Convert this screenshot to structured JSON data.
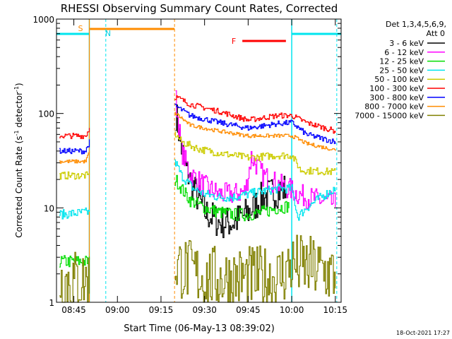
{
  "chart_data": {
    "type": "line",
    "title": "RHESSI Observing Summary Count Rates, Corrected",
    "xlabel": "Start Time (06-May-13 08:39:02)",
    "ylabel": "Corrected Count Rate (s",
    "ylabel_sup1": "-1",
    "ylabel_mid": " detector",
    "ylabel_sup2": "-1",
    "ylabel_end": ")",
    "y_scale": "log",
    "ylim": [
      1,
      1000
    ],
    "xlim": [
      "08:39:02",
      "10:17:00"
    ],
    "y_ticks": [
      {
        "value": 1,
        "label": "1"
      },
      {
        "value": 10,
        "label": "10"
      },
      {
        "value": 100,
        "label": "100"
      },
      {
        "value": 1000,
        "label": "1000"
      }
    ],
    "x_ticks": [
      {
        "value": "08:45",
        "label": "08:45"
      },
      {
        "value": "09:00",
        "label": "09:00"
      },
      {
        "value": "09:15",
        "label": "09:15"
      },
      {
        "value": "09:30",
        "label": "09:30"
      },
      {
        "value": "09:45",
        "label": "09:45"
      },
      {
        "value": "10:00",
        "label": "10:00"
      },
      {
        "value": "10:15",
        "label": "10:15"
      }
    ],
    "legend_header": [
      "Det 1,3,4,5,6,9,",
      "Att 0"
    ],
    "legend_position": "right",
    "timestamp": "18-Oct-2021 17:27",
    "intervals": {
      "night": [
        [
          "08:39:02",
          "08:50:20"
        ],
        [
          "10:00:00",
          "10:17:00"
        ]
      ],
      "saa": [
        "08:50:20",
        "09:19:40"
      ],
      "flare": [
        "09:43:00",
        "09:58:00"
      ]
    },
    "interval_labels": {
      "saa": "S",
      "night": "N",
      "flare": "F"
    },
    "vlines": {
      "cyan_dashed": [
        "08:56:00",
        "10:15:30"
      ],
      "orange_dashed": [
        "09:19:40"
      ]
    },
    "series": [
      {
        "name": "3 - 6 keV",
        "color": "#000000",
        "noise": 0.18,
        "x": [
          "09:20:00",
          "09:23:00",
          "09:27:00",
          "09:30:00",
          "09:35:00",
          "09:40:00",
          "09:45:00",
          "09:50:00",
          "09:55:00",
          "09:58:00"
        ],
        "y": [
          100,
          28,
          14,
          9,
          7,
          7,
          9,
          13,
          15,
          16
        ]
      },
      {
        "name": "6 - 12 keV",
        "color": "#ff00ff",
        "noise": 0.12,
        "x": [
          "09:20:00",
          "09:22:00",
          "09:25:00",
          "09:30:00",
          "09:35:00",
          "09:40:00",
          "09:44:00",
          "09:46:00",
          "09:50:00",
          "09:55:00",
          "09:59:00",
          "10:02:00",
          "10:05:00",
          "10:10:00",
          "10:15:00"
        ],
        "y": [
          140,
          40,
          23,
          17,
          14,
          14,
          15,
          35,
          22,
          18,
          16,
          14,
          13,
          12,
          11
        ]
      },
      {
        "name": "12 - 25 keV",
        "color": "#00dd00",
        "noise": 0.07,
        "x": [
          "08:40:00",
          "08:50:20",
          "09:20:00",
          "09:22:00",
          "09:25:00",
          "09:30:00",
          "09:35:00",
          "09:40:00",
          "09:45:00",
          "09:50:00",
          "09:55:00",
          "09:59:00"
        ],
        "y": [
          2.7,
          2.7,
          20,
          16,
          12,
          10,
          9,
          8.5,
          8.5,
          9,
          10,
          10.5
        ]
      },
      {
        "name": "25 - 50 keV",
        "color": "#00e5ee",
        "noise": 0.05,
        "x": [
          "08:40:00",
          "08:50:00",
          "08:50:20",
          "09:20:00",
          "09:22:00",
          "09:26:00",
          "09:30:00",
          "09:35:00",
          "09:40:00",
          "09:45:00",
          "09:50:00",
          "09:55:00",
          "10:00:00",
          "10:02:00",
          "10:05:00",
          "10:10:00",
          "10:15:00"
        ],
        "y": [
          8.5,
          9,
          9.5,
          30,
          22,
          16,
          14,
          13,
          13,
          14,
          15,
          16,
          16,
          8,
          10,
          13,
          16
        ]
      },
      {
        "name": "50 - 100 keV",
        "color": "#cccc00",
        "noise": 0.04,
        "x": [
          "08:40:00",
          "08:50:00",
          "08:50:20",
          "09:20:00",
          "09:22:00",
          "09:28:00",
          "09:35:00",
          "09:45:00",
          "09:55:00",
          "10:00:00",
          "10:03:00",
          "10:15:00"
        ],
        "y": [
          22,
          22,
          24,
          60,
          50,
          42,
          38,
          34,
          36,
          36,
          25,
          24
        ]
      },
      {
        "name": "100 - 300 keV",
        "color": "#ff0000",
        "noise": 0.03,
        "x": [
          "08:40:00",
          "08:49:00",
          "08:50:20",
          "09:20:00",
          "09:25:00",
          "09:35:00",
          "09:45:00",
          "09:55:00",
          "10:00:00",
          "10:05:00",
          "10:15:00"
        ],
        "y": [
          58,
          58,
          70,
          150,
          125,
          105,
          85,
          95,
          95,
          80,
          65
        ]
      },
      {
        "name": "300 - 800 keV",
        "color": "#0000ff",
        "noise": 0.03,
        "x": [
          "08:40:00",
          "08:49:00",
          "08:50:20",
          "09:20:00",
          "09:25:00",
          "09:35:00",
          "09:45:00",
          "09:55:00",
          "10:00:00",
          "10:05:00",
          "10:15:00"
        ],
        "y": [
          40,
          40,
          50,
          120,
          95,
          80,
          70,
          78,
          80,
          60,
          50
        ]
      },
      {
        "name": "800 - 7000 keV",
        "color": "#ff8c00",
        "noise": 0.02,
        "x": [
          "08:40:00",
          "08:49:00",
          "08:50:20",
          "09:20:00",
          "09:25:00",
          "09:35:00",
          "09:45:00",
          "09:55:00",
          "10:00:00",
          "10:05:00",
          "10:15:00"
        ],
        "y": [
          31,
          31,
          40,
          100,
          75,
          65,
          58,
          58,
          58,
          48,
          41
        ]
      },
      {
        "name": "7000 - 15000 keV",
        "color": "#808000",
        "noise": 0.35,
        "x": [
          "08:40:00",
          "08:50:20",
          "09:20:00",
          "09:30:00",
          "09:45:00",
          "09:55:00",
          "10:00:00",
          "10:10:00",
          "10:15:00"
        ],
        "y": [
          1.7,
          1.7,
          2.5,
          1.8,
          1.8,
          1.8,
          2.5,
          2.2,
          1.9
        ]
      }
    ]
  }
}
